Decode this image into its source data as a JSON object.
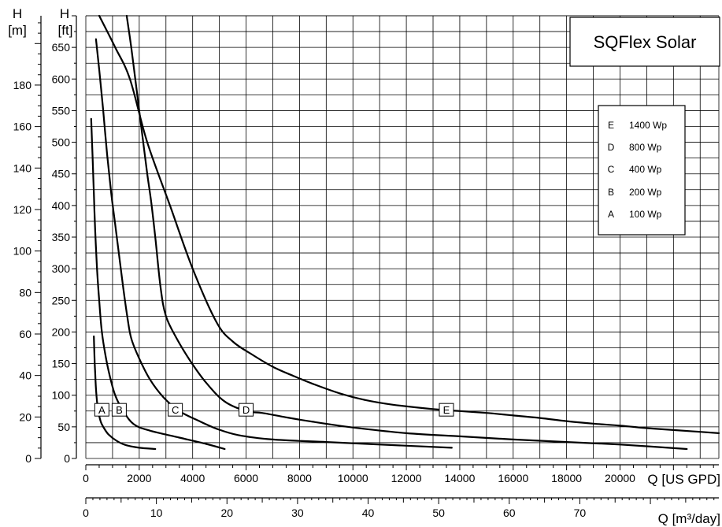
{
  "chart_data": {
    "type": "line",
    "title": "SQFlex Solar",
    "x_gpd": {
      "label": "Q [US GPD]",
      "ticks": [
        0,
        2000,
        4000,
        6000,
        8000,
        10000,
        12000,
        14000,
        16000,
        18000,
        20000
      ],
      "range": [
        0,
        23700
      ]
    },
    "x_m3": {
      "label": "Q [m³/day]",
      "ticks": [
        0,
        10,
        20,
        30,
        40,
        50,
        60,
        70
      ],
      "range": [
        0,
        89.7
      ]
    },
    "y_ft": {
      "label_top": "H",
      "label_unit": "[ft]",
      "ticks": [
        0,
        50,
        100,
        150,
        200,
        250,
        300,
        350,
        400,
        450,
        500,
        550,
        600,
        650
      ],
      "range": [
        0,
        700
      ]
    },
    "y_m": {
      "label_top": "H",
      "label_unit": "[m]",
      "ticks": [
        0,
        20,
        40,
        60,
        80,
        100,
        120,
        140,
        160,
        180
      ],
      "range": [
        0,
        213.4
      ]
    },
    "grid": true,
    "legend": {
      "position": "top-right",
      "entries": [
        {
          "key": "E",
          "text": "1400 Wp"
        },
        {
          "key": "D",
          "text": "800 Wp"
        },
        {
          "key": "C",
          "text": "400 Wp"
        },
        {
          "key": "B",
          "text": "200 Wp"
        },
        {
          "key": "A",
          "text": "100 Wp"
        }
      ]
    },
    "series": [
      {
        "name": "A",
        "label_at": [
          600,
          77
        ],
        "points": [
          [
            300,
            193
          ],
          [
            320,
            165
          ],
          [
            350,
            135
          ],
          [
            380,
            110
          ],
          [
            420,
            90
          ],
          [
            480,
            72
          ],
          [
            560,
            58
          ],
          [
            680,
            48
          ],
          [
            850,
            38
          ],
          [
            1150,
            28
          ],
          [
            1500,
            21
          ],
          [
            2000,
            17
          ],
          [
            2600,
            15
          ]
        ]
      },
      {
        "name": "B",
        "label_at": [
          1250,
          77
        ],
        "points": [
          [
            200,
            537
          ],
          [
            250,
            480
          ],
          [
            300,
            420
          ],
          [
            350,
            360
          ],
          [
            420,
            300
          ],
          [
            500,
            250
          ],
          [
            600,
            200
          ],
          [
            750,
            160
          ],
          [
            900,
            130
          ],
          [
            1100,
            100
          ],
          [
            1400,
            75
          ],
          [
            1800,
            54
          ],
          [
            2400,
            44
          ],
          [
            3500,
            33
          ],
          [
            4500,
            23
          ],
          [
            5200,
            15
          ]
        ]
      },
      {
        "name": "C",
        "label_at": [
          3350,
          77
        ],
        "points": [
          [
            380,
            663
          ],
          [
            500,
            615
          ],
          [
            650,
            550
          ],
          [
            800,
            480
          ],
          [
            950,
            420
          ],
          [
            1100,
            370
          ],
          [
            1250,
            320
          ],
          [
            1400,
            270
          ],
          [
            1550,
            225
          ],
          [
            1700,
            190
          ],
          [
            2000,
            158
          ],
          [
            2400,
            125
          ],
          [
            2900,
            97
          ],
          [
            3500,
            75
          ],
          [
            4200,
            60
          ],
          [
            4900,
            47
          ],
          [
            5700,
            37
          ],
          [
            7000,
            30
          ],
          [
            9000,
            26
          ],
          [
            11000,
            22
          ],
          [
            13700,
            17
          ]
        ]
      },
      {
        "name": "D",
        "label_at": [
          6000,
          77
        ],
        "points": [
          [
            1530,
            700
          ],
          [
            1700,
            650
          ],
          [
            1850,
            600
          ],
          [
            2000,
            550
          ],
          [
            2150,
            500
          ],
          [
            2300,
            450
          ],
          [
            2450,
            405
          ],
          [
            2600,
            350
          ],
          [
            2800,
            270
          ],
          [
            3000,
            225
          ],
          [
            3400,
            190
          ],
          [
            3900,
            155
          ],
          [
            4500,
            120
          ],
          [
            5200,
            90
          ],
          [
            6000,
            75
          ],
          [
            6600,
            72
          ],
          [
            7500,
            65
          ],
          [
            8500,
            58
          ],
          [
            10000,
            49
          ],
          [
            12000,
            40
          ],
          [
            14000,
            35
          ],
          [
            16000,
            30
          ],
          [
            18000,
            26
          ],
          [
            20000,
            22
          ],
          [
            22500,
            15
          ]
        ]
      },
      {
        "name": "E",
        "label_at": [
          13500,
          77
        ],
        "points": [
          [
            500,
            700
          ],
          [
            1100,
            650
          ],
          [
            1650,
            600
          ],
          [
            2300,
            500
          ],
          [
            3150,
            400
          ],
          [
            4000,
            300
          ],
          [
            4900,
            215
          ],
          [
            5500,
            185
          ],
          [
            6200,
            165
          ],
          [
            7000,
            145
          ],
          [
            7800,
            130
          ],
          [
            8500,
            118
          ],
          [
            9500,
            103
          ],
          [
            10500,
            92
          ],
          [
            11500,
            85
          ],
          [
            13000,
            78
          ],
          [
            14000,
            75
          ],
          [
            15000,
            72
          ],
          [
            16000,
            68
          ],
          [
            17000,
            64
          ],
          [
            18000,
            59
          ],
          [
            19000,
            55
          ],
          [
            20000,
            52
          ],
          [
            21000,
            48
          ],
          [
            22000,
            45
          ],
          [
            23700,
            40
          ]
        ]
      }
    ]
  }
}
